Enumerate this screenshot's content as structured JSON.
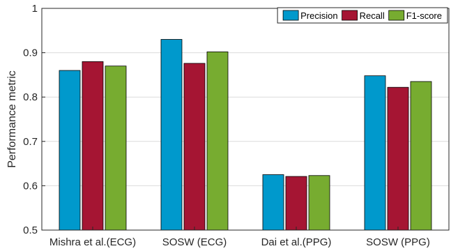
{
  "chart_data": {
    "type": "bar",
    "title": "",
    "xlabel": "",
    "ylabel": "Performance metric",
    "ylim": [
      0.5,
      1
    ],
    "yticks": [
      0.5,
      0.6,
      0.7,
      0.8,
      0.9,
      1
    ],
    "ytick_labels": [
      "0.5",
      "0.6",
      "0.7",
      "0.8",
      "0.9",
      "1"
    ],
    "grid": true,
    "legend_position": "top-right",
    "categories": [
      "Mishra et al.(ECG)",
      "SOSW (ECG)",
      "Dai et al.(PPG)",
      "SOSW (PPG)"
    ],
    "series": [
      {
        "name": "Precision",
        "color": "#0099cc",
        "values": [
          0.86,
          0.93,
          0.625,
          0.848
        ]
      },
      {
        "name": "Recall",
        "color": "#a51533",
        "values": [
          0.88,
          0.876,
          0.621,
          0.822
        ]
      },
      {
        "name": "F1-score",
        "color": "#77ac30",
        "values": [
          0.87,
          0.902,
          0.623,
          0.835
        ]
      }
    ]
  }
}
